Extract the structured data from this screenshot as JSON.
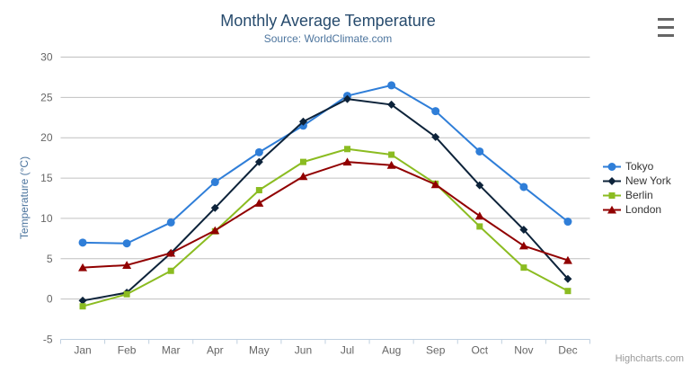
{
  "header": {
    "title": "Monthly Average Temperature",
    "subtitle": "Source: WorldClimate.com"
  },
  "icons": {
    "export_menu": "hamburger-icon"
  },
  "credit": {
    "label": "Highcharts.com"
  },
  "chart_data": {
    "type": "line",
    "title": "Monthly Average Temperature",
    "subtitle": "Source: WorldClimate.com",
    "xlabel": "",
    "ylabel": "Temperature (°C)",
    "categories": [
      "Jan",
      "Feb",
      "Mar",
      "Apr",
      "May",
      "Jun",
      "Jul",
      "Aug",
      "Sep",
      "Oct",
      "Nov",
      "Dec"
    ],
    "series": [
      {
        "name": "Tokyo",
        "color": "#2f7ed8",
        "marker": "circle",
        "values": [
          7.0,
          6.9,
          9.5,
          14.5,
          18.2,
          21.5,
          25.2,
          26.5,
          23.3,
          18.3,
          13.9,
          9.6
        ]
      },
      {
        "name": "New York",
        "color": "#0d233a",
        "marker": "diamond",
        "values": [
          -0.2,
          0.8,
          5.7,
          11.3,
          17.0,
          22.0,
          24.8,
          24.1,
          20.1,
          14.1,
          8.6,
          2.5
        ]
      },
      {
        "name": "Berlin",
        "color": "#8bbc21",
        "marker": "square",
        "values": [
          -0.9,
          0.6,
          3.5,
          8.4,
          13.5,
          17.0,
          18.6,
          17.9,
          14.3,
          9.0,
          3.9,
          1.0
        ]
      },
      {
        "name": "London",
        "color": "#910000",
        "marker": "triangle",
        "values": [
          3.9,
          4.2,
          5.7,
          8.5,
          11.9,
          15.2,
          17.0,
          16.6,
          14.2,
          10.3,
          6.6,
          4.8
        ]
      }
    ],
    "ylim": [
      -5,
      30
    ],
    "yticks": [
      -5,
      0,
      5,
      10,
      15,
      20,
      25,
      30
    ],
    "tick_interval": 5,
    "grid": "horizontal",
    "legend_position": "right",
    "grid_color": "#c0c0c0",
    "axis_line_color": "#c0d0e0",
    "axis_label_color": "#666666"
  }
}
